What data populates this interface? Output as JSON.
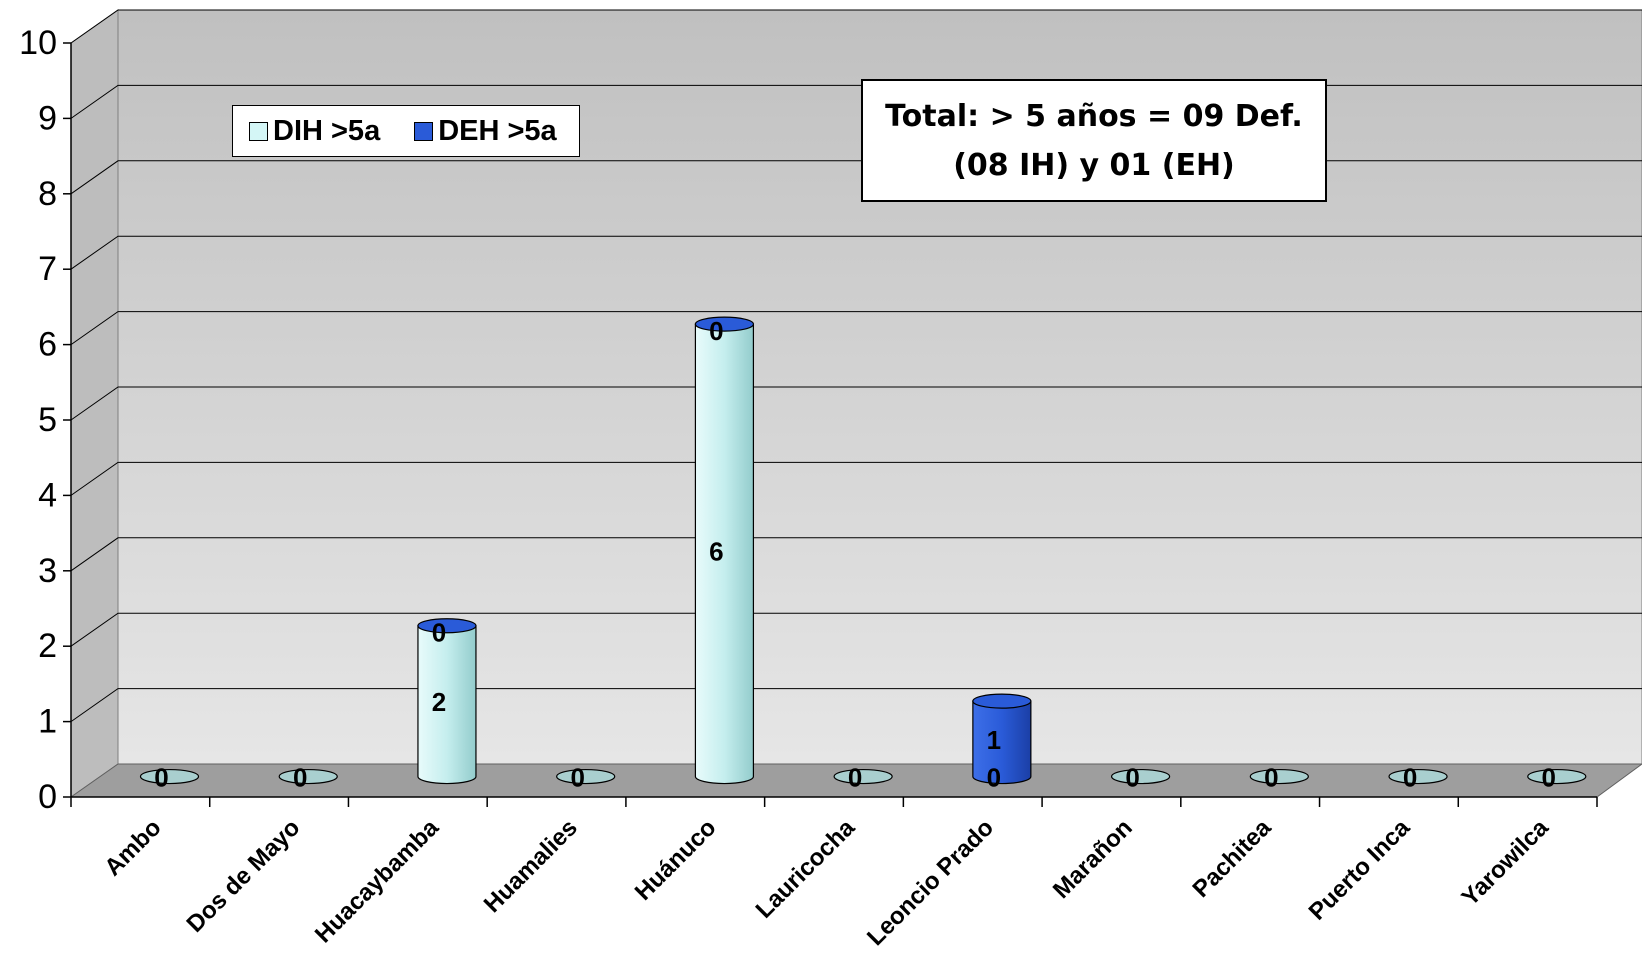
{
  "chart_data": {
    "type": "bar",
    "title": "",
    "xlabel": "",
    "ylabel": "",
    "ylim": [
      0,
      10
    ],
    "yticks": [
      "0",
      "1",
      "2",
      "3",
      "4",
      "5",
      "6",
      "7",
      "8",
      "9",
      "10"
    ],
    "grid": true,
    "legend_position": "top-left",
    "categories": [
      "Ambo",
      "Dos de Mayo",
      "Huacaybamba",
      "Huamalies",
      "Huánuco",
      "Lauricocha",
      "Leoncio Prado",
      "Marañon",
      "Pachitea",
      "Puerto Inca",
      "Yarowilca"
    ],
    "series": [
      {
        "name": "DIH >5a",
        "color": "#d4f6f6",
        "values": [
          0,
          0,
          2,
          0,
          6,
          0,
          0,
          0,
          0,
          0,
          0
        ]
      },
      {
        "name": "DEH >5a",
        "color": "#2a5bd8",
        "values": [
          0,
          0,
          0,
          0,
          0,
          0,
          1,
          0,
          0,
          0,
          0
        ]
      }
    ],
    "annotation": {
      "line1": "Total: > 5 años = 09 Def.",
      "line2": "(08 IH) y 01 (EH)"
    }
  }
}
